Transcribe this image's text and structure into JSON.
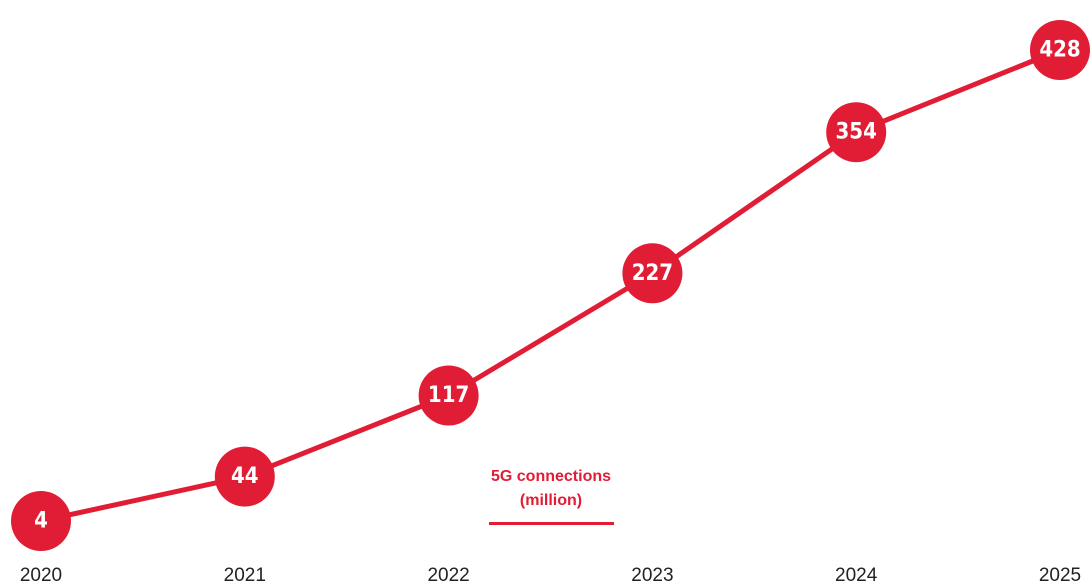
{
  "chart_data": {
    "type": "line",
    "categories": [
      "2020",
      "2021",
      "2022",
      "2023",
      "2024",
      "2025"
    ],
    "series": [
      {
        "name": "5G connections (million)",
        "color": "#e11d35",
        "values": [
          4,
          44,
          117,
          227,
          354,
          428
        ]
      }
    ]
  }
}
